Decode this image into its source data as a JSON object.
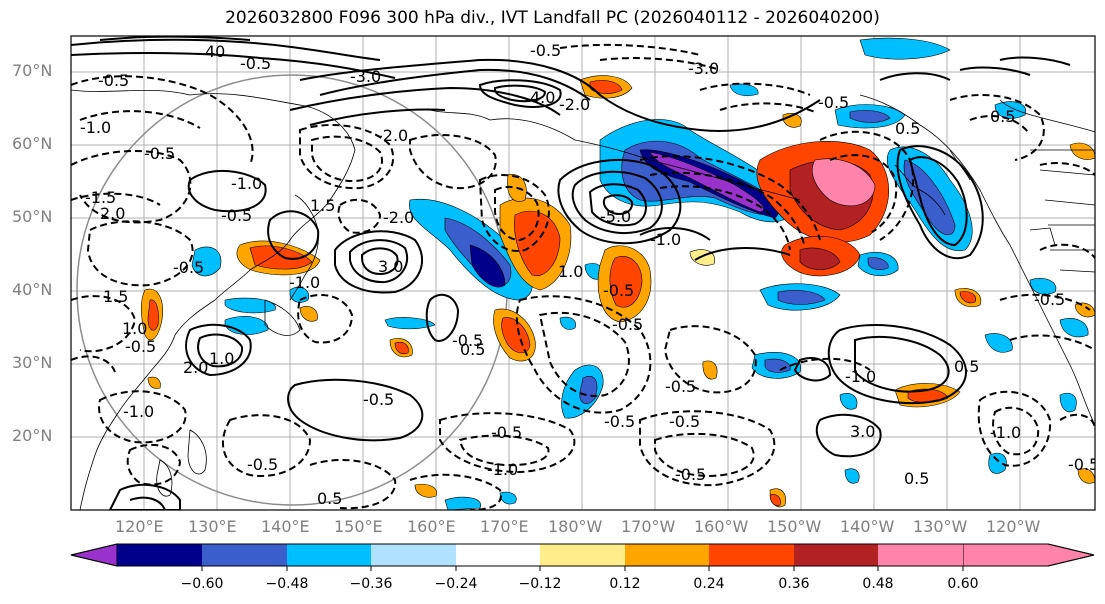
{
  "title": "2026032800 F096 300 hPa div., IVT Landfall PC (2026040112 - 2026040200)",
  "axes": {
    "lat_labels": [
      "70°N",
      "60°N",
      "50°N",
      "40°N",
      "30°N",
      "20°N"
    ],
    "lon_labels": [
      "120°E",
      "130°E",
      "140°E",
      "150°E",
      "160°E",
      "170°E",
      "180°W",
      "170°W",
      "160°W",
      "150°W",
      "140°W",
      "130°W",
      "120°W"
    ]
  },
  "colorbar": {
    "ticks": [
      "−0.60",
      "−0.48",
      "−0.36",
      "−0.24",
      "−0.12",
      "0.12",
      "0.24",
      "0.36",
      "0.48",
      "0.60"
    ],
    "colors": [
      "#9932cc",
      "#00008b",
      "#3a5fcd",
      "#00bfff",
      "#b0e2ff",
      "#ffffff",
      "#ffec8b",
      "#ffa500",
      "#ff4500",
      "#b22222",
      "#ff83aa"
    ]
  },
  "contour_labels": [
    "40",
    "-0.5",
    "-3.0",
    "-1.0",
    "-0.5",
    "-0.5",
    "-0.5",
    "-1.0",
    "1.5",
    "-2.0",
    "-2.0",
    "-0.5",
    "3.0",
    "4.0",
    "-5.0",
    "-1.0",
    "-3.0",
    "-2.0",
    "1.0",
    "-0.5",
    "-0.5",
    "-0.5",
    "0.5",
    "-1.0",
    "-0.5",
    "1.0",
    "1.5",
    "2.0",
    "-1.5",
    "-0.5",
    "-1.0",
    "1.0",
    "2.0",
    "-0.5",
    "-0.5",
    "-0.5",
    "-1.0",
    "0.5",
    "0.5",
    "-0.5",
    "-0.5",
    "-1.0",
    "-0.5",
    "3.0",
    "0.5",
    "-0.5",
    "-0.5",
    "-1.0",
    "-0.5",
    "0.5",
    "0.5",
    "-0.5"
  ]
}
